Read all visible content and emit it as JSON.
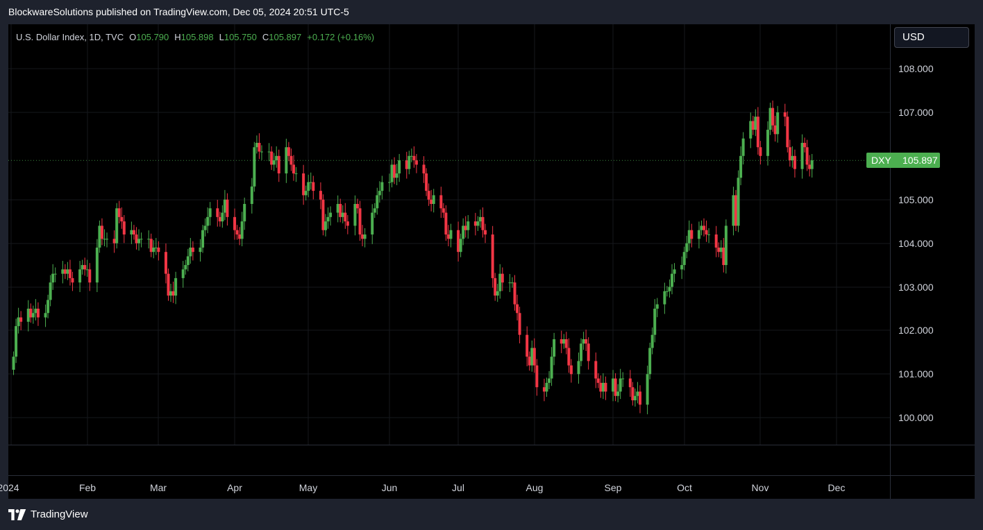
{
  "header": {
    "title": "BlockwareSolutions published on TradingView.com, Dec 05, 2024 20:51 UTC-5"
  },
  "legend": {
    "symbol": "U.S. Dollar Index, 1D, TVC",
    "open_label": "O",
    "open": "105.790",
    "high_label": "H",
    "high": "105.898",
    "low_label": "L",
    "low": "105.750",
    "close_label": "C",
    "close": "105.897",
    "change": "+0.172 (+0.16%)"
  },
  "currency_button": {
    "label": "USD"
  },
  "price_tag": {
    "symbol": "DXY",
    "price": "105.897"
  },
  "footer": {
    "brand": "TradingView"
  },
  "colors": {
    "up": "#4caf50",
    "down": "#f23645",
    "background": "#000000",
    "frame": "#1e222d"
  },
  "chart_data": {
    "type": "candlestick",
    "ylim": [
      99.4,
      108.9
    ],
    "y_ticks": [
      "108.000",
      "107.000",
      "105.000",
      "104.000",
      "103.000",
      "102.000",
      "101.000",
      "100.000"
    ],
    "y_tick_values": [
      108,
      107,
      105,
      104,
      103,
      102,
      101,
      100
    ],
    "x_ticks": [
      {
        "label": "2024",
        "date": "2024-01-01"
      },
      {
        "label": "Feb",
        "date": "2024-02-01"
      },
      {
        "label": "Mar",
        "date": "2024-03-01"
      },
      {
        "label": "Apr",
        "date": "2024-04-01"
      },
      {
        "label": "May",
        "date": "2024-05-01"
      },
      {
        "label": "Jun",
        "date": "2024-06-03"
      },
      {
        "label": "Jul",
        "date": "2024-07-01"
      },
      {
        "label": "Aug",
        "date": "2024-08-01"
      },
      {
        "label": "Sep",
        "date": "2024-09-02"
      },
      {
        "label": "Oct",
        "date": "2024-10-01"
      },
      {
        "label": "Nov",
        "date": "2024-11-01"
      },
      {
        "label": "Dec",
        "date": "2024-12-02"
      }
    ],
    "last_price": 105.897,
    "series": [
      {
        "x_start": "2024-01-02",
        "closes": [
          101.4,
          102.1,
          102.3,
          102.2,
          102.5,
          102.3,
          102.4,
          102.5,
          102.3,
          102.4,
          102.7,
          103.1,
          103.3,
          103.3,
          103.4,
          103.3,
          103.4,
          103.2,
          103.1,
          103.4,
          103.5,
          103.4,
          103.4,
          103.1,
          103.9,
          104.4,
          104.1,
          104.1,
          104.1,
          104.0,
          104.8,
          104.6,
          104.5,
          104.2,
          104.3,
          104.2,
          104.0,
          104.1,
          104.1,
          104.1,
          103.8,
          103.9,
          103.9,
          103.8,
          103.3,
          102.8,
          102.9,
          102.8,
          103.2,
          103.4,
          103.5,
          103.7,
          103.9,
          103.8,
          103.9,
          104.3,
          104.4,
          104.6,
          104.8,
          104.6,
          104.5,
          104.7,
          105.0,
          104.6,
          104.3,
          104.2,
          104.1,
          104.5,
          104.9,
          105.3,
          106.2,
          106.3,
          106.1,
          106.1,
          106.1,
          105.8,
          105.9,
          106.0,
          105.6,
          106.2,
          106.0,
          105.8,
          105.6,
          105.6,
          105.1,
          105.2,
          105.4,
          105.4,
          105.2,
          105.0,
          104.3,
          104.5,
          104.6,
          104.7,
          104.9,
          104.6,
          104.7,
          104.5,
          104.4,
          104.9,
          104.8,
          104.2,
          104.1,
          104.2,
          104.7,
          104.8,
          105.1,
          105.2,
          105.4,
          105.4,
          105.8,
          105.5,
          105.6,
          105.9,
          105.7,
          106.0,
          106.0,
          105.9,
          105.8,
          105.6,
          105.2,
          105.0,
          104.9,
          105.1,
          104.8,
          104.7,
          104.2,
          104.1,
          104.3,
          103.8,
          104.1,
          104.4,
          104.3,
          104.5,
          104.4,
          104.5,
          104.6,
          104.3,
          104.2,
          103.2,
          102.8,
          102.9,
          103.3,
          103.1,
          103.1,
          103.1,
          102.6,
          102.4,
          101.9,
          101.4,
          101.2,
          101.6,
          101.2,
          100.7,
          100.6,
          100.8,
          100.9,
          101.4,
          101.8,
          101.7,
          101.8,
          101.6,
          101.2,
          101.0,
          101.3,
          101.7,
          101.8,
          101.7,
          101.3,
          100.9,
          100.8,
          100.6,
          100.8,
          100.6,
          100.9,
          100.5,
          100.6,
          100.9,
          100.9,
          100.7,
          100.4,
          100.5,
          100.6,
          100.3,
          101.0,
          101.6,
          101.9,
          102.5,
          102.6,
          102.9,
          102.9,
          103.0,
          103.3,
          103.4,
          103.5,
          103.8,
          104.0,
          104.3,
          104.1,
          104.3,
          104.4,
          104.3,
          104.2,
          104.2,
          103.9,
          103.8,
          103.9,
          103.5,
          104.4,
          105.1,
          104.4,
          105.5,
          106.0,
          106.4,
          106.8,
          106.6,
          106.9,
          106.2,
          106.0,
          106.6,
          107.1,
          106.7,
          106.5,
          107.0,
          106.9,
          106.2,
          105.9,
          106.0,
          105.7,
          106.3,
          106.2,
          105.8,
          105.7,
          105.9
        ]
      }
    ]
  }
}
